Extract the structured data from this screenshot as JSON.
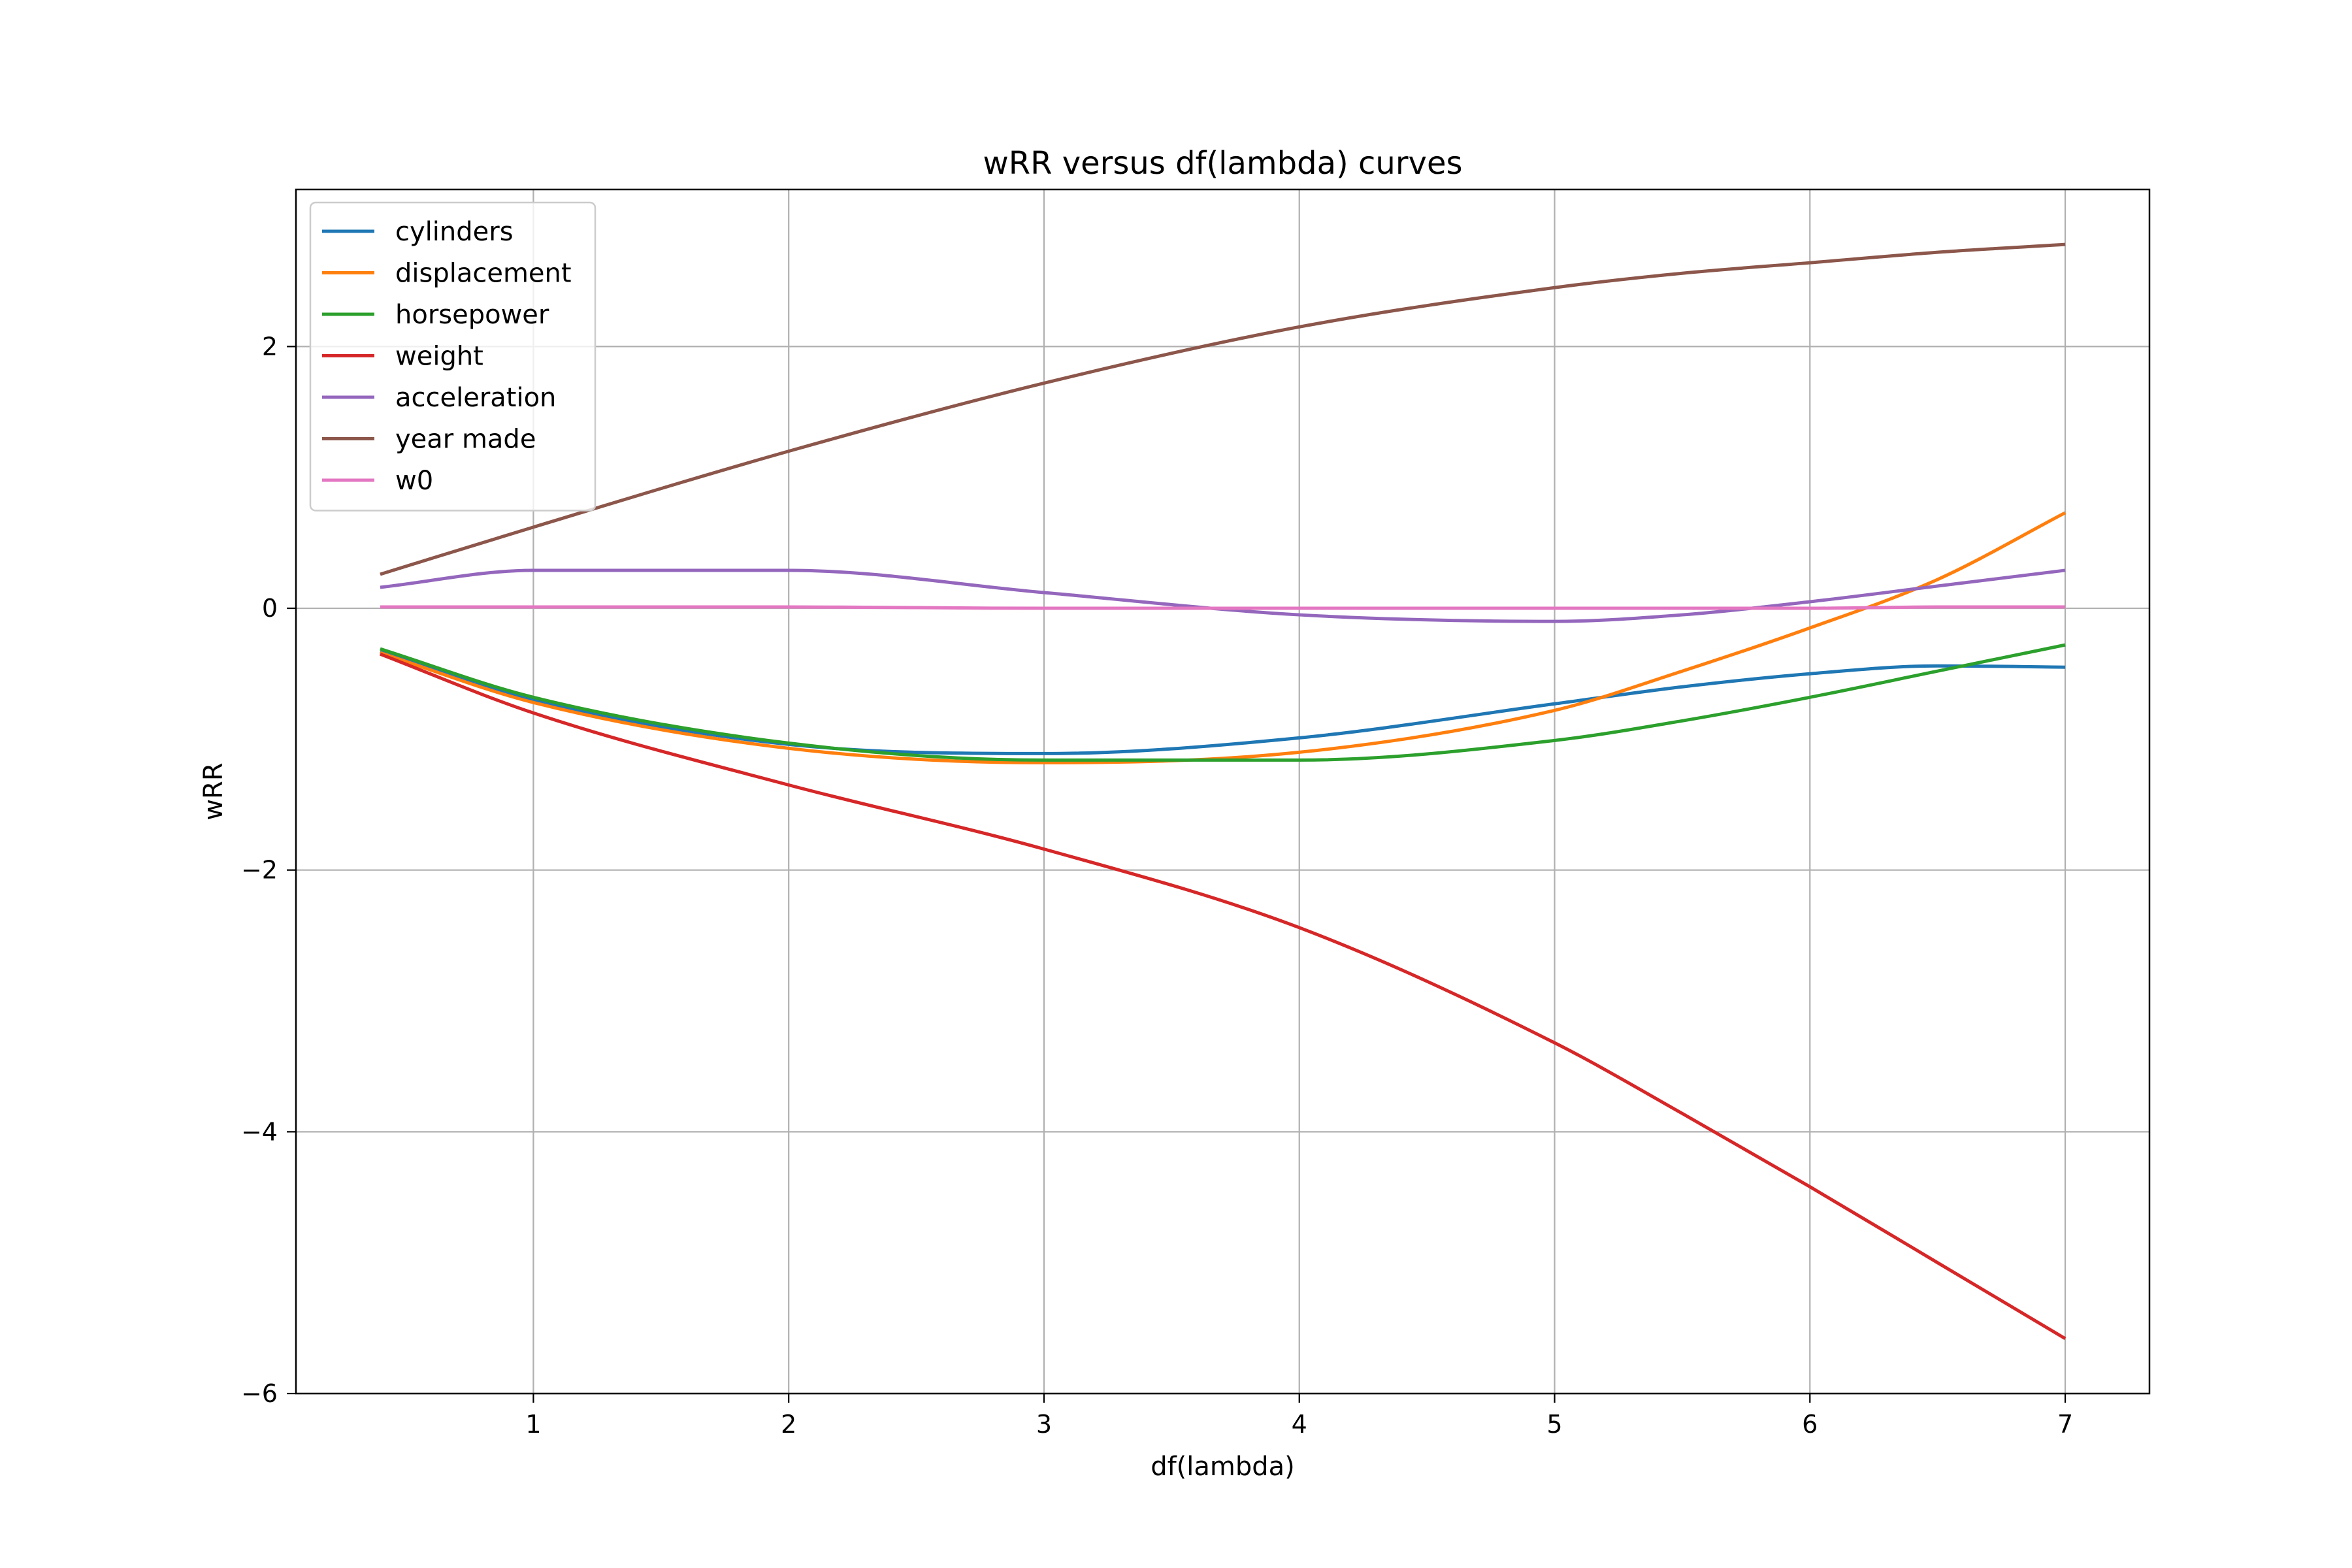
{
  "chart_data": {
    "type": "line",
    "title": "wRR versus df(lambda) curves",
    "xlabel": "df(lambda)",
    "ylabel": "wRR",
    "xlim": [
      0.07,
      7.33
    ],
    "ylim": [
      -6,
      3.2
    ],
    "xticks": [
      1,
      2,
      3,
      4,
      5,
      6,
      7
    ],
    "yticks": [
      -6,
      -4,
      -2,
      0,
      2
    ],
    "xtick_labels": [
      "1",
      "2",
      "3",
      "4",
      "5",
      "6",
      "7"
    ],
    "ytick_labels": [
      "−6",
      "−4",
      "−2",
      "0",
      "2"
    ],
    "grid": true,
    "legend_position": "top-left",
    "x": [
      0.4,
      1.0,
      2.0,
      3.0,
      4.0,
      5.0,
      5.5,
      6.0,
      6.5,
      7.0
    ],
    "series": [
      {
        "name": "cylinders",
        "color": "#1f77b4",
        "values": [
          -0.33,
          -0.7,
          -1.04,
          -1.11,
          -0.99,
          -0.73,
          -0.6,
          -0.5,
          -0.44,
          -0.45
        ]
      },
      {
        "name": "displacement",
        "color": "#ff7f0e",
        "values": [
          -0.34,
          -0.72,
          -1.07,
          -1.18,
          -1.1,
          -0.78,
          -0.48,
          -0.15,
          0.22,
          0.73
        ]
      },
      {
        "name": "horsepower",
        "color": "#2ca02c",
        "values": [
          -0.31,
          -0.68,
          -1.03,
          -1.16,
          -1.16,
          -1.01,
          -0.86,
          -0.68,
          -0.48,
          -0.28
        ]
      },
      {
        "name": "weight",
        "color": "#d62728",
        "values": [
          -0.35,
          -0.8,
          -1.35,
          -1.84,
          -2.44,
          -3.32,
          -3.86,
          -4.42,
          -5.0,
          -5.58
        ]
      },
      {
        "name": "acceleration",
        "color": "#9467bd",
        "values": [
          0.16,
          0.29,
          0.29,
          0.12,
          -0.05,
          -0.1,
          -0.05,
          0.05,
          0.17,
          0.29
        ]
      },
      {
        "name": "year made",
        "color": "#8c564b",
        "values": [
          0.26,
          0.62,
          1.2,
          1.72,
          2.15,
          2.45,
          2.56,
          2.64,
          2.72,
          2.78
        ]
      },
      {
        "name": "w0",
        "color": "#e377c2",
        "values": [
          0.01,
          0.01,
          0.01,
          0.0,
          0.0,
          0.0,
          0.0,
          0.0,
          0.01,
          0.01
        ]
      }
    ]
  }
}
